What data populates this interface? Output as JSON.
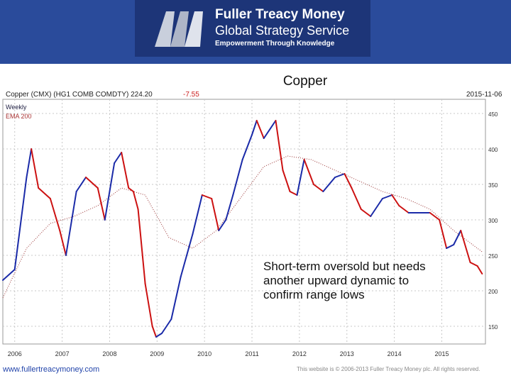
{
  "header": {
    "title": "Fuller Treacy Money",
    "subtitle": "Global Strategy Service",
    "tagline": "Empowerment Through Knowledge"
  },
  "slide_title": "Copper",
  "chart_header": {
    "title": "Copper (CMX) (HG1 COMB COMDTY) 224.20",
    "change": "-7.55",
    "date": "2015-11-06"
  },
  "legend": {
    "weekly": "Weekly",
    "ema": "EMA 200"
  },
  "annotation": "Short-term oversold but needs another upward dynamic to confirm range lows",
  "footer": {
    "url": "www.fullertreacymoney.com",
    "copyright": "This website is © 2006-2013 Fuller Treacy Money plc. All rights reserved."
  },
  "colors": {
    "header_bg": "#2a4b9b",
    "up": "#1a2aa8",
    "down": "#cc1111",
    "ema": "#993333",
    "grid": "#c8c8c8"
  },
  "chart_data": {
    "type": "line",
    "x_axis": "year",
    "xlim": [
      2005.75,
      2015.92
    ],
    "ylim": [
      125,
      470
    ],
    "x_ticks": [
      "2006",
      "2007",
      "2008",
      "2009",
      "2010",
      "2011",
      "2012",
      "2013",
      "2014",
      "2015"
    ],
    "y_ticks": [
      150,
      200,
      250,
      300,
      350,
      400,
      450
    ],
    "y_tick_labels": [
      "150",
      "200",
      "250",
      "300",
      "350",
      "400",
      "450"
    ],
    "series": [
      {
        "name": "Weekly",
        "x": [
          2005.75,
          2006.0,
          2006.25,
          2006.35,
          2006.5,
          2006.75,
          2006.95,
          2007.08,
          2007.3,
          2007.5,
          2007.75,
          2007.9,
          2008.1,
          2008.25,
          2008.4,
          2008.5,
          2008.6,
          2008.75,
          2008.9,
          2008.98,
          2009.1,
          2009.3,
          2009.5,
          2009.75,
          2009.95,
          2010.15,
          2010.3,
          2010.45,
          2010.6,
          2010.8,
          2011.0,
          2011.1,
          2011.25,
          2011.5,
          2011.65,
          2011.8,
          2011.95,
          2012.1,
          2012.3,
          2012.5,
          2012.75,
          2012.95,
          2013.1,
          2013.3,
          2013.5,
          2013.75,
          2013.95,
          2014.1,
          2014.3,
          2014.5,
          2014.75,
          2014.95,
          2015.1,
          2015.25,
          2015.4,
          2015.6,
          2015.75,
          2015.85
        ],
        "values": [
          215,
          230,
          360,
          400,
          345,
          330,
          285,
          250,
          340,
          360,
          345,
          300,
          380,
          395,
          345,
          340,
          315,
          210,
          150,
          135,
          140,
          160,
          220,
          280,
          335,
          330,
          285,
          300,
          335,
          385,
          420,
          440,
          415,
          440,
          370,
          340,
          335,
          385,
          350,
          340,
          360,
          365,
          345,
          315,
          305,
          330,
          335,
          320,
          310,
          310,
          310,
          300,
          260,
          265,
          285,
          240,
          235,
          224
        ]
      },
      {
        "name": "EMA 200",
        "x": [
          2005.75,
          2006.25,
          2006.75,
          2007.25,
          2007.75,
          2008.25,
          2008.75,
          2009.25,
          2009.75,
          2010.25,
          2010.75,
          2011.25,
          2011.75,
          2012.25,
          2012.75,
          2013.25,
          2013.75,
          2014.25,
          2014.75,
          2015.25,
          2015.85
        ],
        "values": [
          190,
          260,
          295,
          305,
          320,
          345,
          335,
          275,
          260,
          285,
          330,
          375,
          390,
          385,
          370,
          355,
          340,
          330,
          315,
          285,
          255
        ]
      }
    ]
  }
}
